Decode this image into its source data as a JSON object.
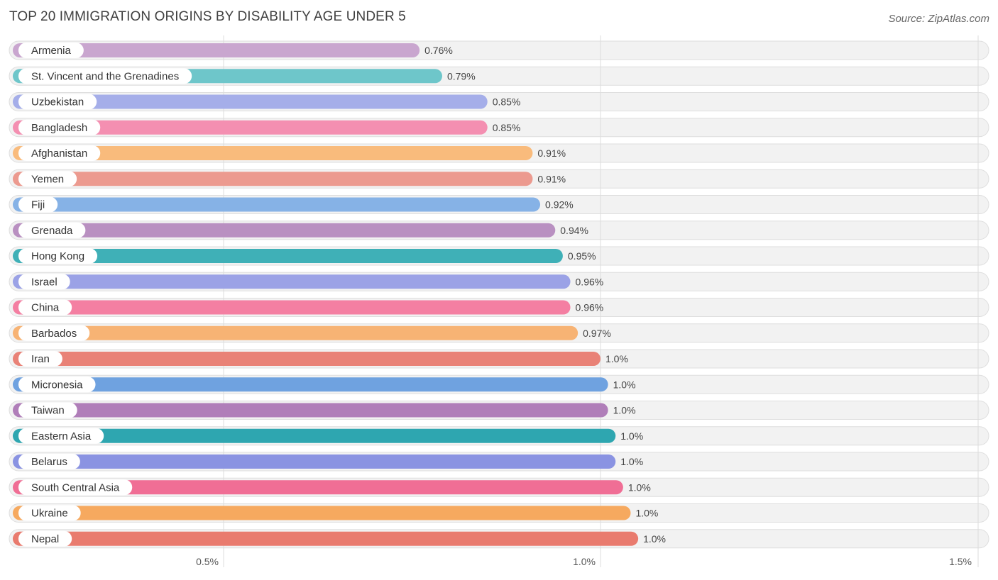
{
  "header": {
    "title": "TOP 20 IMMIGRATION ORIGINS BY DISABILITY AGE UNDER 5",
    "source": "Source: ZipAtlas.com"
  },
  "chart_data": {
    "type": "bar",
    "orientation": "horizontal",
    "title": "TOP 20 IMMIGRATION ORIGINS BY DISABILITY AGE UNDER 5",
    "xlabel": "",
    "ylabel": "",
    "xlim": [
      0.22,
      1.5
    ],
    "grid": true,
    "ticks": [
      0.5,
      1.0,
      1.5
    ],
    "tick_labels": [
      "0.5%",
      "1.0%",
      "1.5%"
    ],
    "categories": [
      "Armenia",
      "St. Vincent and the Grenadines",
      "Uzbekistan",
      "Bangladesh",
      "Afghanistan",
      "Yemen",
      "Fiji",
      "Grenada",
      "Hong Kong",
      "Israel",
      "China",
      "Barbados",
      "Iran",
      "Micronesia",
      "Taiwan",
      "Eastern Asia",
      "Belarus",
      "South Central Asia",
      "Ukraine",
      "Nepal"
    ],
    "values": [
      0.76,
      0.79,
      0.85,
      0.85,
      0.91,
      0.91,
      0.92,
      0.94,
      0.95,
      0.96,
      0.96,
      0.97,
      1.0,
      1.01,
      1.01,
      1.02,
      1.02,
      1.03,
      1.04,
      1.05
    ],
    "value_labels": [
      "0.76%",
      "0.79%",
      "0.85%",
      "0.85%",
      "0.91%",
      "0.91%",
      "0.92%",
      "0.94%",
      "0.95%",
      "0.96%",
      "0.96%",
      "0.97%",
      "1.0%",
      "1.0%",
      "1.0%",
      "1.0%",
      "1.0%",
      "1.0%",
      "1.0%",
      "1.0%"
    ],
    "colors": [
      "#c9a6cf",
      "#6ec6ca",
      "#a5aee9",
      "#f48fb1",
      "#f9bb7c",
      "#ec9a8f",
      "#86b2e6",
      "#b990c1",
      "#3fb0b7",
      "#9ba2e6",
      "#f47fa2",
      "#f7b374",
      "#e98277",
      "#6fa2e0",
      "#b07eb9",
      "#2ea6b0",
      "#8a93e2",
      "#f06e95",
      "#f6a95f",
      "#e97b6e"
    ]
  }
}
